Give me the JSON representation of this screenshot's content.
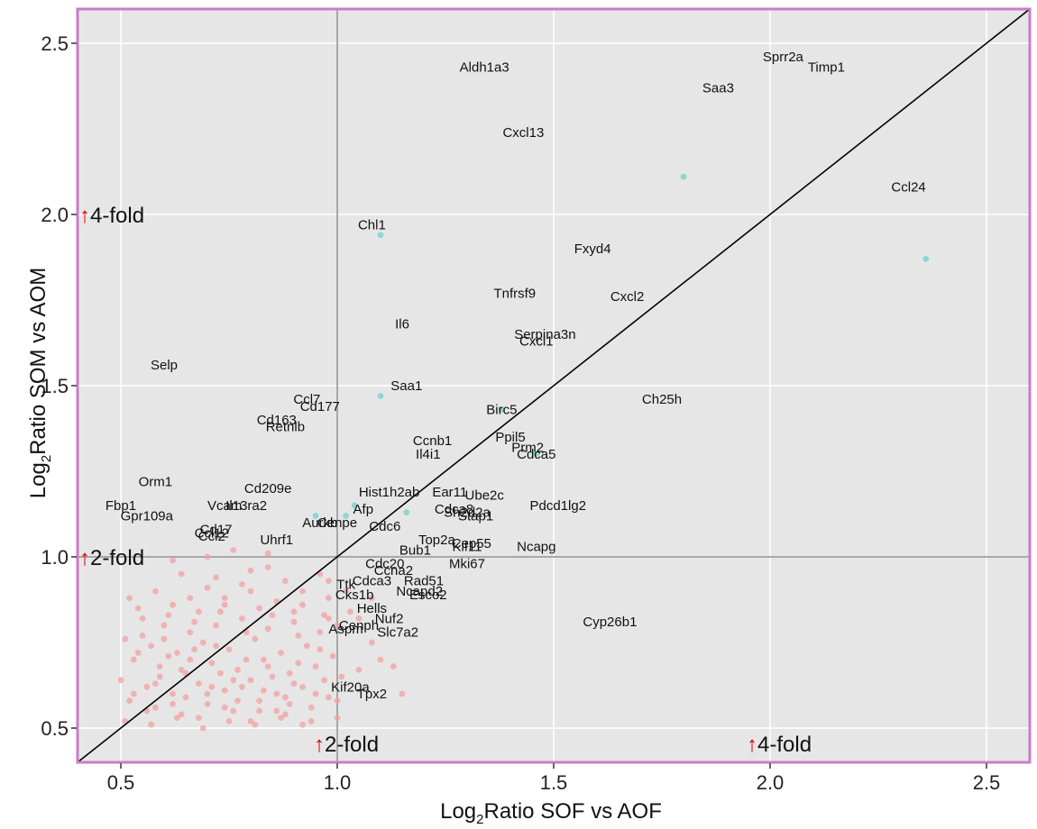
{
  "chart_data": {
    "type": "scatter",
    "xlabel": {
      "prefix": "Log",
      "sub": "2",
      "suffix": "Ratio SOF vs AOF"
    },
    "ylabel": {
      "prefix": "Log",
      "sub": "2",
      "suffix": "Ratio SOM vs AOM"
    },
    "xlim": [
      0.4,
      2.6
    ],
    "ylim": [
      0.4,
      2.6
    ],
    "xticks": [
      {
        "value": 0.5,
        "label": "0.5"
      },
      {
        "value": 1.0,
        "label": "1.0"
      },
      {
        "value": 1.5,
        "label": "1.5"
      },
      {
        "value": 2.0,
        "label": "2.0"
      },
      {
        "value": 2.5,
        "label": "2.5"
      }
    ],
    "yticks": [
      {
        "value": 0.5,
        "label": "0.5"
      },
      {
        "value": 1.0,
        "label": "1.0"
      },
      {
        "value": 1.5,
        "label": "1.5"
      },
      {
        "value": 2.0,
        "label": "2.0"
      },
      {
        "value": 2.5,
        "label": "2.5"
      }
    ],
    "grid": true,
    "colors": {
      "panel": "#e6e6e6",
      "border": "#c87dc8",
      "grid": "#ffffff",
      "fold_line": "#a8a8a8",
      "diagonal": "#000000",
      "highlight_point": "#8fd6d2",
      "background_point": "#f2a0a0",
      "arrow": "#e00000"
    },
    "fold_markers": [
      {
        "axis": "y",
        "value": 1.0,
        "label": "2-fold"
      },
      {
        "axis": "y",
        "value": 2.0,
        "label": "4-fold"
      },
      {
        "axis": "x",
        "value": 1.0,
        "label": "2-fold"
      },
      {
        "axis": "x",
        "value": 2.0,
        "label": "4-fold"
      }
    ],
    "arrow_glyph": "↑",
    "labeled_genes": [
      {
        "name": "Sprr2a",
        "x": 2.03,
        "y": 2.46
      },
      {
        "name": "Timp1",
        "x": 2.13,
        "y": 2.43
      },
      {
        "name": "Saa3",
        "x": 1.88,
        "y": 2.37
      },
      {
        "name": "Aldh1a3",
        "x": 1.34,
        "y": 2.43
      },
      {
        "name": "Cxcl13",
        "x": 1.43,
        "y": 2.24
      },
      {
        "name": "Ccl24",
        "x": 2.32,
        "y": 2.08
      },
      {
        "name": "Chl1",
        "x": 1.08,
        "y": 1.97
      },
      {
        "name": "Fxyd4",
        "x": 1.59,
        "y": 1.9
      },
      {
        "name": "Tnfrsf9",
        "x": 1.41,
        "y": 1.77
      },
      {
        "name": "Cxcl2",
        "x": 1.67,
        "y": 1.76
      },
      {
        "name": "Il6",
        "x": 1.15,
        "y": 1.68
      },
      {
        "name": "Serpina3n",
        "x": 1.48,
        "y": 1.65
      },
      {
        "name": "Cxcl1",
        "x": 1.46,
        "y": 1.63
      },
      {
        "name": "Selp",
        "x": 0.6,
        "y": 1.56
      },
      {
        "name": "Saa1",
        "x": 1.16,
        "y": 1.5
      },
      {
        "name": "Ch25h",
        "x": 1.75,
        "y": 1.46
      },
      {
        "name": "Ccl7",
        "x": 0.93,
        "y": 1.46
      },
      {
        "name": "Cd177",
        "x": 0.96,
        "y": 1.44
      },
      {
        "name": "Birc5",
        "x": 1.38,
        "y": 1.43
      },
      {
        "name": "Cd163",
        "x": 0.86,
        "y": 1.4
      },
      {
        "name": "Retnlb",
        "x": 0.88,
        "y": 1.38
      },
      {
        "name": "Ppil5",
        "x": 1.4,
        "y": 1.35
      },
      {
        "name": "Ccnb1",
        "x": 1.22,
        "y": 1.34
      },
      {
        "name": "Prm2",
        "x": 1.44,
        "y": 1.32
      },
      {
        "name": "Il4i1",
        "x": 1.21,
        "y": 1.3
      },
      {
        "name": "Cdca5",
        "x": 1.46,
        "y": 1.3
      },
      {
        "name": "Orm1",
        "x": 0.58,
        "y": 1.22
      },
      {
        "name": "Cd209e",
        "x": 0.84,
        "y": 1.2
      },
      {
        "name": "Hist1h2ab",
        "x": 1.12,
        "y": 1.19
      },
      {
        "name": "Ear11",
        "x": 1.26,
        "y": 1.19
      },
      {
        "name": "Ube2c",
        "x": 1.34,
        "y": 1.18
      },
      {
        "name": "Vcam",
        "x": 0.74,
        "y": 1.15
      },
      {
        "name": "Il13ra2",
        "x": 0.79,
        "y": 1.15
      },
      {
        "name": "Fbp1",
        "x": 0.5,
        "y": 1.15
      },
      {
        "name": "Pdcd1lg2",
        "x": 1.51,
        "y": 1.15
      },
      {
        "name": "Afp",
        "x": 1.06,
        "y": 1.14
      },
      {
        "name": "Cdca8",
        "x": 1.27,
        "y": 1.14
      },
      {
        "name": "Sh2d2a",
        "x": 1.3,
        "y": 1.13
      },
      {
        "name": "Stap1",
        "x": 1.32,
        "y": 1.12
      },
      {
        "name": "Gpr109a",
        "x": 0.56,
        "y": 1.12
      },
      {
        "name": "Aurkb",
        "x": 0.96,
        "y": 1.1
      },
      {
        "name": "Cenpe",
        "x": 1.0,
        "y": 1.1
      },
      {
        "name": "Cdc6",
        "x": 1.11,
        "y": 1.09
      },
      {
        "name": "Cd17",
        "x": 0.72,
        "y": 1.08
      },
      {
        "name": "Ccl12",
        "x": 0.71,
        "y": 1.07
      },
      {
        "name": "Ccl2",
        "x": 0.71,
        "y": 1.06
      },
      {
        "name": "Uhrf1",
        "x": 0.86,
        "y": 1.05
      },
      {
        "name": "Top2a",
        "x": 1.23,
        "y": 1.05
      },
      {
        "name": "Cep55",
        "x": 1.31,
        "y": 1.04
      },
      {
        "name": "Kif11",
        "x": 1.3,
        "y": 1.03
      },
      {
        "name": "Ncapg",
        "x": 1.46,
        "y": 1.03
      },
      {
        "name": "Bub1",
        "x": 1.18,
        "y": 1.02
      },
      {
        "name": "Cdc20",
        "x": 1.11,
        "y": 0.98
      },
      {
        "name": "Mki67",
        "x": 1.3,
        "y": 0.98
      },
      {
        "name": "Ccna2",
        "x": 1.13,
        "y": 0.96
      },
      {
        "name": "Cdca3",
        "x": 1.08,
        "y": 0.93
      },
      {
        "name": "Rad51",
        "x": 1.2,
        "y": 0.93
      },
      {
        "name": "Ttk",
        "x": 1.02,
        "y": 0.92
      },
      {
        "name": "Ncapd2",
        "x": 1.19,
        "y": 0.9
      },
      {
        "name": "Esco2",
        "x": 1.21,
        "y": 0.89
      },
      {
        "name": "Cks1b",
        "x": 1.04,
        "y": 0.89
      },
      {
        "name": "Hells",
        "x": 1.08,
        "y": 0.85
      },
      {
        "name": "Nuf2",
        "x": 1.12,
        "y": 0.82
      },
      {
        "name": "Cyp26b1",
        "x": 1.63,
        "y": 0.81
      },
      {
        "name": "Cenph",
        "x": 1.05,
        "y": 0.8
      },
      {
        "name": "Aspm",
        "x": 1.02,
        "y": 0.79
      },
      {
        "name": "Slc7a2",
        "x": 1.14,
        "y": 0.78
      },
      {
        "name": "Kif20a",
        "x": 1.03,
        "y": 0.62
      },
      {
        "name": "Tpx2",
        "x": 1.08,
        "y": 0.6
      }
    ],
    "highlight_points": [
      [
        1.8,
        2.11
      ],
      [
        2.36,
        1.87
      ],
      [
        1.1,
        1.94
      ],
      [
        1.1,
        1.47
      ],
      [
        1.02,
        1.12
      ],
      [
        1.16,
        1.13
      ],
      [
        1.04,
        1.15
      ],
      [
        0.95,
        1.12
      ],
      [
        1.38,
        1.43
      ],
      [
        1.46,
        1.3
      ]
    ],
    "background_points": [
      [
        0.52,
        0.88
      ],
      [
        0.58,
        0.9
      ],
      [
        0.62,
        0.86
      ],
      [
        0.68,
        0.84
      ],
      [
        0.74,
        0.88
      ],
      [
        0.8,
        0.9
      ],
      [
        0.86,
        0.87
      ],
      [
        0.92,
        0.86
      ],
      [
        0.98,
        0.88
      ],
      [
        1.02,
        0.9
      ],
      [
        0.55,
        0.82
      ],
      [
        0.6,
        0.8
      ],
      [
        0.66,
        0.78
      ],
      [
        0.72,
        0.8
      ],
      [
        0.78,
        0.82
      ],
      [
        0.84,
        0.79
      ],
      [
        0.9,
        0.81
      ],
      [
        0.96,
        0.78
      ],
      [
        1.0,
        0.8
      ],
      [
        0.51,
        0.76
      ],
      [
        0.57,
        0.74
      ],
      [
        0.63,
        0.72
      ],
      [
        0.69,
        0.75
      ],
      [
        0.75,
        0.73
      ],
      [
        0.81,
        0.76
      ],
      [
        0.87,
        0.72
      ],
      [
        0.93,
        0.74
      ],
      [
        0.99,
        0.71
      ],
      [
        0.53,
        0.7
      ],
      [
        0.59,
        0.68
      ],
      [
        0.65,
        0.66
      ],
      [
        0.71,
        0.69
      ],
      [
        0.77,
        0.67
      ],
      [
        0.83,
        0.7
      ],
      [
        0.89,
        0.66
      ],
      [
        0.95,
        0.68
      ],
      [
        1.01,
        0.65
      ],
      [
        0.5,
        0.64
      ],
      [
        0.56,
        0.62
      ],
      [
        0.62,
        0.6
      ],
      [
        0.68,
        0.63
      ],
      [
        0.74,
        0.61
      ],
      [
        0.8,
        0.64
      ],
      [
        0.86,
        0.6
      ],
      [
        0.92,
        0.62
      ],
      [
        0.98,
        0.59
      ],
      [
        0.52,
        0.58
      ],
      [
        0.58,
        0.56
      ],
      [
        0.64,
        0.54
      ],
      [
        0.7,
        0.57
      ],
      [
        0.76,
        0.55
      ],
      [
        0.82,
        0.58
      ],
      [
        0.88,
        0.54
      ],
      [
        0.94,
        0.56
      ],
      [
        1.0,
        0.53
      ],
      [
        0.51,
        0.52
      ],
      [
        0.57,
        0.51
      ],
      [
        0.63,
        0.53
      ],
      [
        0.69,
        0.5
      ],
      [
        0.75,
        0.52
      ],
      [
        0.81,
        0.51
      ],
      [
        0.87,
        0.53
      ],
      [
        0.54,
        0.85
      ],
      [
        0.61,
        0.83
      ],
      [
        0.67,
        0.81
      ],
      [
        0.73,
        0.84
      ],
      [
        0.79,
        0.78
      ],
      [
        0.85,
        0.83
      ],
      [
        0.91,
        0.77
      ],
      [
        0.97,
        0.83
      ],
      [
        0.55,
        0.77
      ],
      [
        0.61,
        0.71
      ],
      [
        0.67,
        0.73
      ],
      [
        0.73,
        0.66
      ],
      [
        0.79,
        0.7
      ],
      [
        0.85,
        0.65
      ],
      [
        0.91,
        0.69
      ],
      [
        0.97,
        0.64
      ],
      [
        0.53,
        0.6
      ],
      [
        0.59,
        0.65
      ],
      [
        0.65,
        0.59
      ],
      [
        0.71,
        0.62
      ],
      [
        0.77,
        0.58
      ],
      [
        0.83,
        0.61
      ],
      [
        0.89,
        0.57
      ],
      [
        0.95,
        0.6
      ],
      [
        0.56,
        0.55
      ],
      [
        0.62,
        0.57
      ],
      [
        0.68,
        0.53
      ],
      [
        0.74,
        0.56
      ],
      [
        0.8,
        0.52
      ],
      [
        0.86,
        0.55
      ],
      [
        0.92,
        0.51
      ],
      [
        0.64,
        0.95
      ],
      [
        0.72,
        0.94
      ],
      [
        0.8,
        0.96
      ],
      [
        0.88,
        0.93
      ],
      [
        0.96,
        0.95
      ],
      [
        0.7,
        0.91
      ],
      [
        0.78,
        0.92
      ],
      [
        0.84,
        0.97
      ],
      [
        0.92,
        0.9
      ],
      [
        0.98,
        0.93
      ],
      [
        1.05,
        0.82
      ],
      [
        1.08,
        0.75
      ],
      [
        1.1,
        0.7
      ],
      [
        1.13,
        0.68
      ],
      [
        1.05,
        0.67
      ],
      [
        1.0,
        0.58
      ],
      [
        1.15,
        0.6
      ],
      [
        1.08,
        0.88
      ],
      [
        1.03,
        0.84
      ],
      [
        0.54,
        0.72
      ],
      [
        0.6,
        0.76
      ],
      [
        0.66,
        0.7
      ],
      [
        0.72,
        0.74
      ],
      [
        0.78,
        0.62
      ],
      [
        0.84,
        0.68
      ],
      [
        0.9,
        0.63
      ],
      [
        0.96,
        0.73
      ],
      [
        0.58,
        0.63
      ],
      [
        0.64,
        0.67
      ],
      [
        0.7,
        0.6
      ],
      [
        0.76,
        0.64
      ],
      [
        0.82,
        0.55
      ],
      [
        0.88,
        0.59
      ],
      [
        0.94,
        0.52
      ],
      [
        0.66,
        0.88
      ],
      [
        0.74,
        0.86
      ],
      [
        0.82,
        0.85
      ],
      [
        0.9,
        0.84
      ],
      [
        0.98,
        0.82
      ],
      [
        0.7,
        1.0
      ],
      [
        0.76,
        1.02
      ],
      [
        0.84,
        1.01
      ],
      [
        0.62,
        0.99
      ]
    ]
  }
}
